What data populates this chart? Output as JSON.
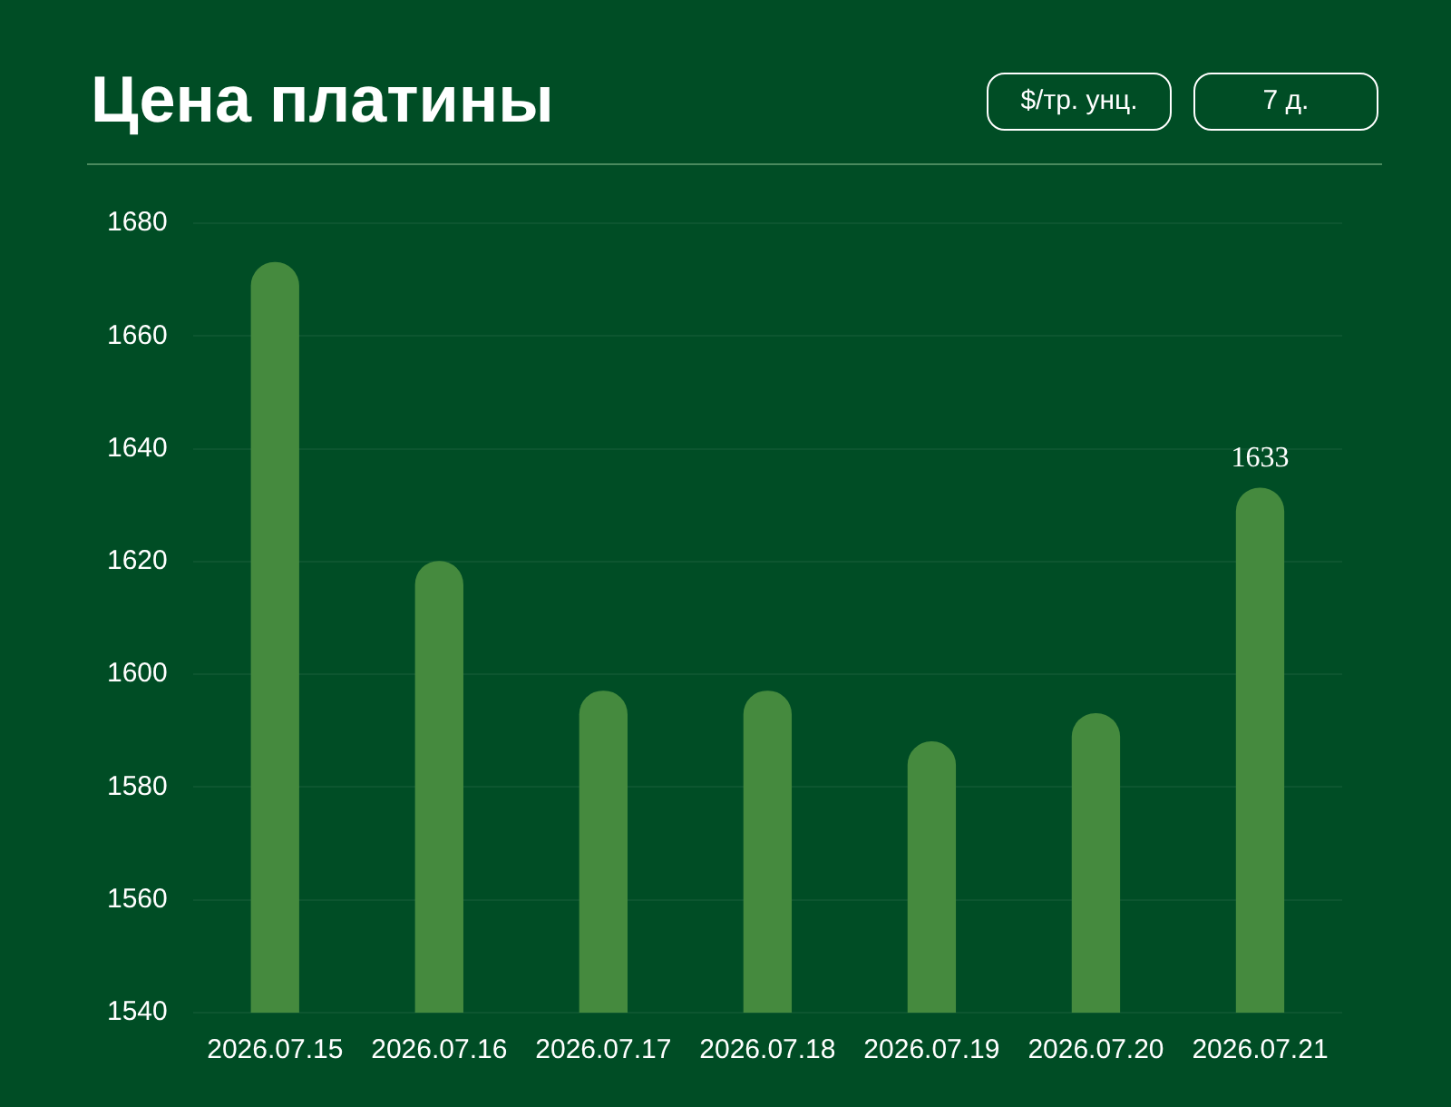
{
  "chart_data": {
    "type": "bar",
    "title": "Цена платины",
    "annotations": [
      "$/тр. унц.",
      "7 д."
    ],
    "categories": [
      "2026.07.15",
      "2026.07.16",
      "2026.07.17",
      "2026.07.18",
      "2026.07.19",
      "2026.07.20",
      "2026.07.21"
    ],
    "values": [
      1673,
      1620,
      1597,
      1597,
      1588,
      1593,
      1633
    ],
    "value_labels": [
      null,
      null,
      null,
      null,
      null,
      null,
      "1633"
    ],
    "color": "#458a3e",
    "ylim": [
      1540,
      1680
    ],
    "yticks": [
      1540,
      1560,
      1580,
      1600,
      1620,
      1640,
      1660,
      1680
    ],
    "grid": "y"
  }
}
